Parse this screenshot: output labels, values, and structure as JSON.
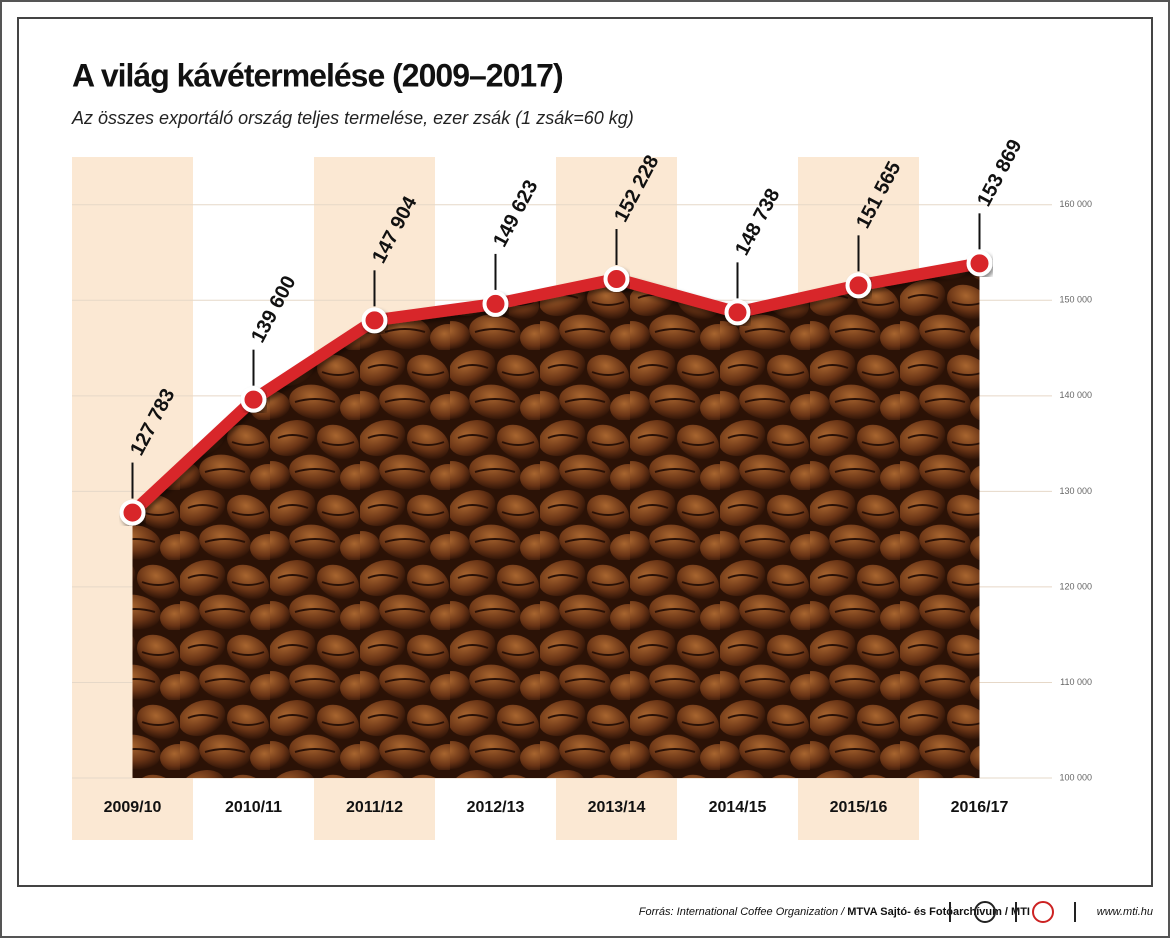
{
  "chart_data": {
    "type": "line",
    "title": "A világ kávétermelése (2009–2017)",
    "subtitle": "Az összes exportáló ország teljes termelése, ezer zsák (1 zsák=60 kg)",
    "categories": [
      "2009/10",
      "2010/11",
      "2011/12",
      "2012/13",
      "2013/14",
      "2014/15",
      "2015/16",
      "2016/17"
    ],
    "values": [
      127783,
      139600,
      147904,
      149623,
      152228,
      148738,
      151565,
      153869
    ],
    "value_labels": [
      "127 783",
      "139 600",
      "147 904",
      "149 623",
      "152 228",
      "148 738",
      "151 565",
      "153 869"
    ],
    "color": "#d8262a",
    "ylim": [
      100000,
      165000
    ],
    "yticks": [
      {
        "value": 100000,
        "label": "100 000"
      },
      {
        "value": 110000,
        "label": "110 000"
      },
      {
        "value": 120000,
        "label": "120 000"
      },
      {
        "value": 130000,
        "label": "130 000"
      },
      {
        "value": 140000,
        "label": "140 000"
      },
      {
        "value": 150000,
        "label": "150 000"
      },
      {
        "value": 160000,
        "label": "160 000"
      }
    ],
    "grid": true
  },
  "footer": {
    "source": "Forrás: International Coffee Organization / ",
    "credit": "MTVA Sajtó- és Fotóarchívum / MTI",
    "url": "www.mti.hu"
  }
}
